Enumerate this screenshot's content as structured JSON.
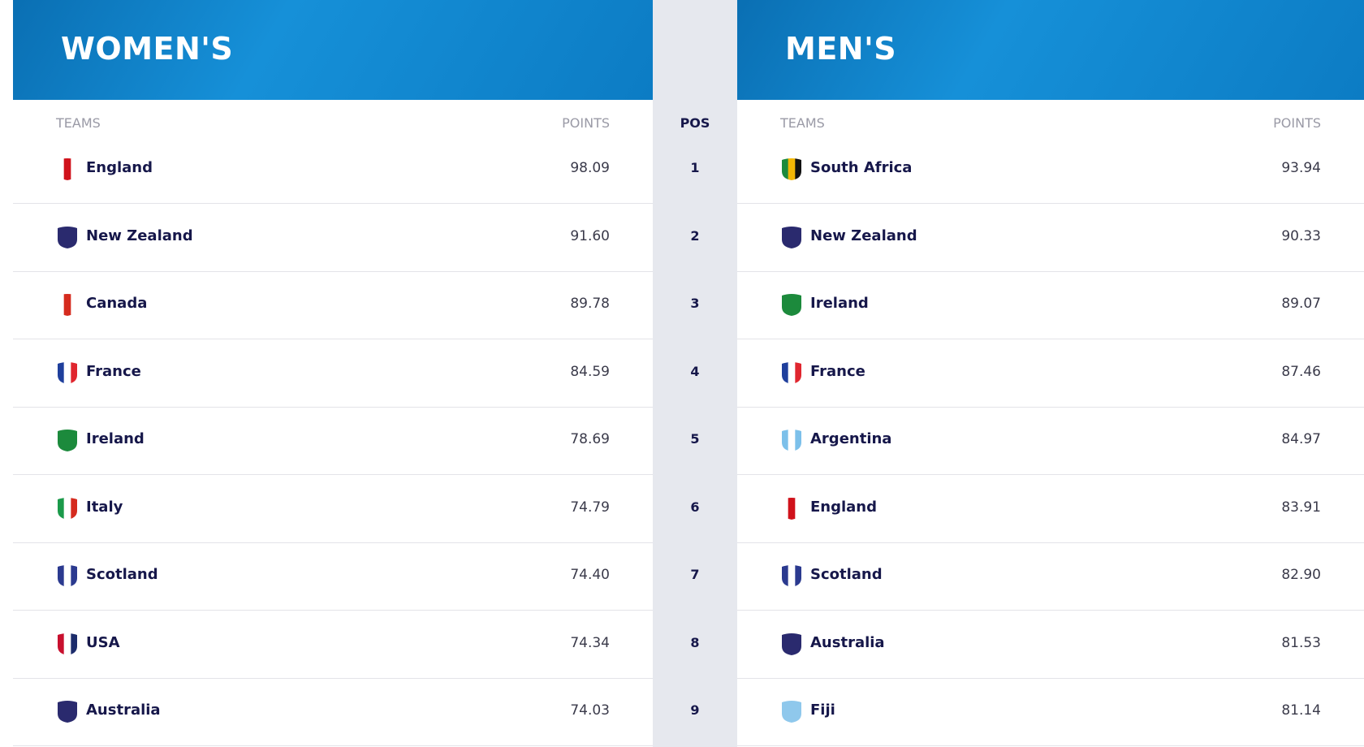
{
  "women": {
    "title": "WOMEN'S",
    "columns": {
      "teams": "TEAMS",
      "points": "POINTS"
    },
    "rows": [
      {
        "team": "England",
        "points": "98.09"
      },
      {
        "team": "New Zealand",
        "points": "91.60"
      },
      {
        "team": "Canada",
        "points": "89.78"
      },
      {
        "team": "France",
        "points": "84.59"
      },
      {
        "team": "Ireland",
        "points": "78.69"
      },
      {
        "team": "Italy",
        "points": "74.79"
      },
      {
        "team": "Scotland",
        "points": "74.40"
      },
      {
        "team": "USA",
        "points": "74.34"
      },
      {
        "team": "Australia",
        "points": "74.03"
      }
    ]
  },
  "pos": {
    "header": "POS",
    "values": [
      "1",
      "2",
      "3",
      "4",
      "5",
      "6",
      "7",
      "8",
      "9"
    ]
  },
  "men": {
    "title": "MEN'S",
    "columns": {
      "teams": "TEAMS",
      "points": "POINTS"
    },
    "rows": [
      {
        "team": "South Africa",
        "points": "93.94"
      },
      {
        "team": "New Zealand",
        "points": "90.33"
      },
      {
        "team": "Ireland",
        "points": "89.07"
      },
      {
        "team": "France",
        "points": "87.46"
      },
      {
        "team": "Argentina",
        "points": "84.97"
      },
      {
        "team": "England",
        "points": "83.91"
      },
      {
        "team": "Scotland",
        "points": "82.90"
      },
      {
        "team": "Australia",
        "points": "81.53"
      },
      {
        "team": "Fiji",
        "points": "81.14"
      }
    ]
  }
}
